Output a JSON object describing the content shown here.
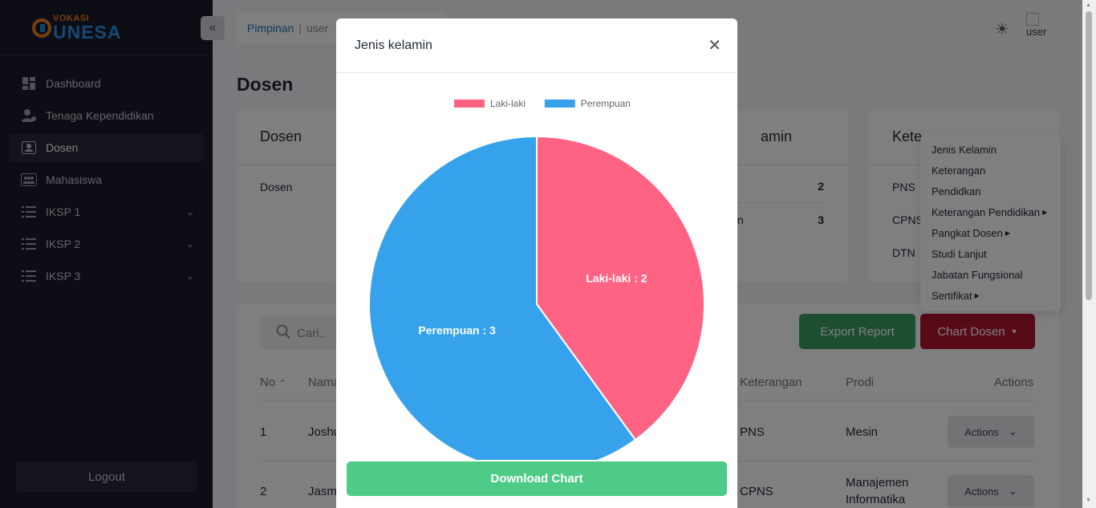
{
  "sidebar": {
    "logo_small": "VOKASI",
    "logo_big": "UNESA",
    "items": [
      {
        "label": "Dashboard",
        "icon": "dashboard-icon"
      },
      {
        "label": "Tenaga Kependidikan",
        "icon": "staff-icon"
      },
      {
        "label": "Dosen",
        "icon": "id-card-icon"
      },
      {
        "label": "Mahasiswa",
        "icon": "students-icon"
      },
      {
        "label": "IKSP 1",
        "icon": "list-icon"
      },
      {
        "label": "IKSP 2",
        "icon": "list-icon"
      },
      {
        "label": "IKSP 3",
        "icon": "list-icon"
      }
    ],
    "logout": "Logout"
  },
  "topbar": {
    "breadcrumb_1": "Pimpinan",
    "breadcrumb_sep": "|",
    "breadcrumb_2": "user",
    "user_alt": "user"
  },
  "page": {
    "title": "Dosen"
  },
  "cards": {
    "card1": {
      "title": "Dosen",
      "row": "Dosen"
    },
    "card2": {
      "title": "amin",
      "rows": [
        {
          "label": "",
          "value": "2"
        },
        {
          "label": "n",
          "value": "3"
        }
      ]
    },
    "card3": {
      "title": "Kete",
      "rows": [
        "PNS",
        "CPNS",
        "DTN"
      ]
    }
  },
  "table": {
    "search_placeholder": "Cari..",
    "export_label": "Export Report",
    "chart_label": "Chart Dosen",
    "headers": {
      "no": "No",
      "nama": "Nama",
      "keterangan": "Keterangan",
      "prodi": "Prodi",
      "actions": "Actions"
    },
    "rows": [
      {
        "no": "1",
        "nama": "Joshu",
        "keterangan": "PNS",
        "prodi": "Mesin",
        "prodi2": "",
        "action": "Actions"
      },
      {
        "no": "2",
        "nama": "Jasm",
        "keterangan": "CPNS",
        "prodi": "Manajemen",
        "prodi2": "Informatika",
        "action": "Actions"
      }
    ]
  },
  "dropdown": {
    "items": [
      {
        "label": "Jenis Kelamin",
        "arrow": false
      },
      {
        "label": "Keterangan",
        "arrow": false
      },
      {
        "label": "Pendidkan",
        "arrow": false
      },
      {
        "label": "Keterangan Pendidikan",
        "arrow": true
      },
      {
        "label": "Pangkat Dosen",
        "arrow": true
      },
      {
        "label": "Studi Lanjut",
        "arrow": false
      },
      {
        "label": "Jabatan Fungsional",
        "arrow": false
      },
      {
        "label": "Sertifikat",
        "arrow": true
      }
    ]
  },
  "modal": {
    "title": "Jenis kelamin",
    "download_label": "Download Chart"
  },
  "chart_data": {
    "type": "pie",
    "categories": [
      "Laki-laki",
      "Perempuan"
    ],
    "values": [
      2,
      3
    ],
    "colors": [
      "#ff6384",
      "#36a2eb"
    ],
    "data_labels": [
      "Laki-laki : 2",
      "Perempuan : 3"
    ],
    "legend_position": "top"
  }
}
